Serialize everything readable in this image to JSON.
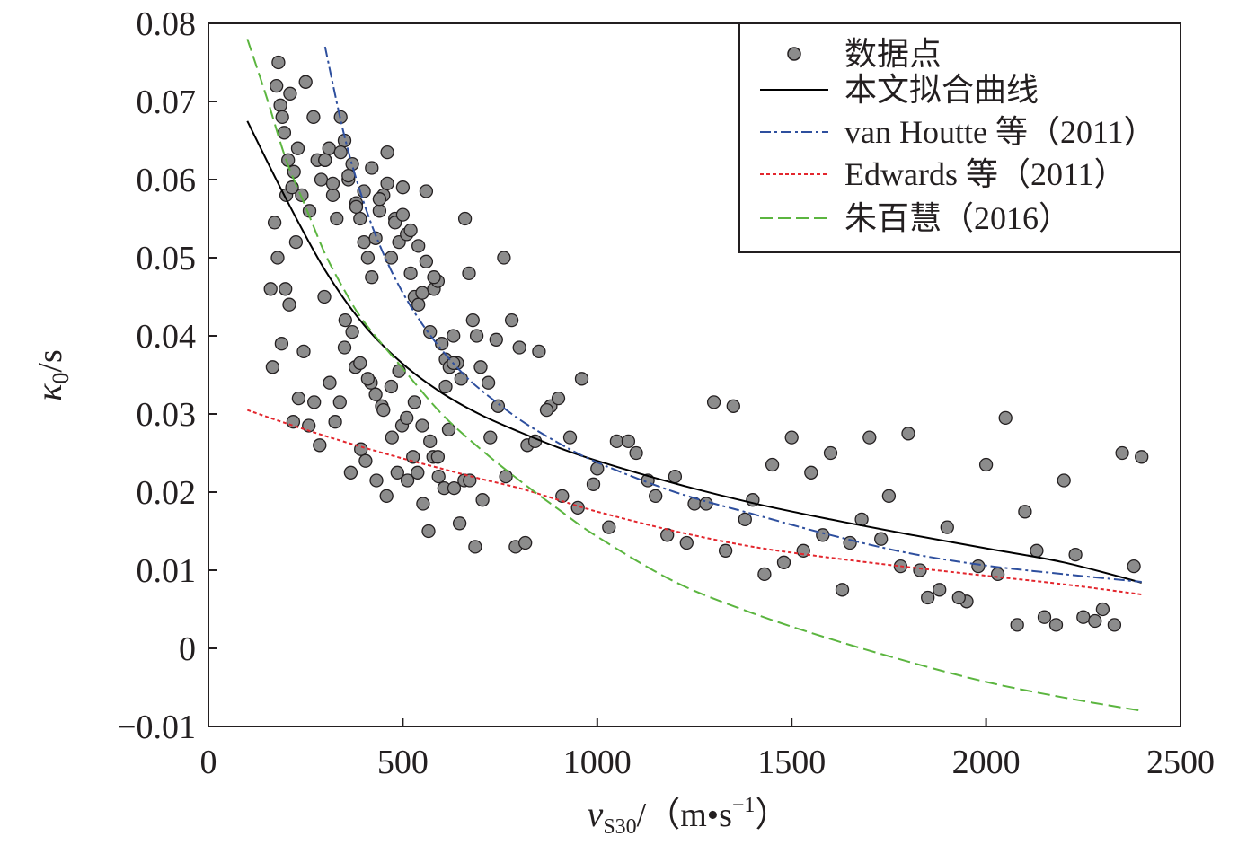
{
  "chart_data": {
    "type": "scatter",
    "title": "",
    "xlabel": {
      "main": "v",
      "sub": "S30",
      "unit_prefix": "/（m•s",
      "sup": "−1",
      "unit_suffix": "）"
    },
    "ylabel": {
      "main": "κ",
      "sub": "0",
      "suffix": "/s"
    },
    "xlim": [
      0,
      2500
    ],
    "ylim": [
      -0.01,
      0.08
    ],
    "xticks": [
      0,
      500,
      1000,
      1500,
      2000,
      2500
    ],
    "xtick_labels": [
      "0",
      "500",
      "1000",
      "1500",
      "2000",
      "2500"
    ],
    "yticks": [
      -0.01,
      0,
      0.01,
      0.02,
      0.03,
      0.04,
      0.05,
      0.06,
      0.07,
      0.08
    ],
    "ytick_labels": [
      "−0.01",
      "0",
      "0.01",
      "0.02",
      "0.03",
      "0.04",
      "0.05",
      "0.06",
      "0.07",
      "0.08"
    ],
    "grid": false,
    "legend_position": "top-right",
    "colors": {
      "points_fill": "#8c8c8c",
      "points_stroke": "#231f20",
      "fit": "#000000",
      "van_houtte": "#2e4f9e",
      "edwards": "#e3262d",
      "zhu": "#5bb53f",
      "axis": "#231f20"
    },
    "legend": [
      {
        "label": "数据点",
        "kind": "marker"
      },
      {
        "label": "本文拟合曲线",
        "kind": "solid"
      },
      {
        "label": "van Houtte 等（2011）",
        "kind": "dashdot"
      },
      {
        "label": "Edwards 等（2011）",
        "kind": "dotted"
      },
      {
        "label": "朱百慧（2016）",
        "kind": "dashed"
      }
    ],
    "series": [
      {
        "name": "本文拟合曲线",
        "style": "solid",
        "x": [
          100,
          200,
          300,
          400,
          500,
          600,
          700,
          800,
          900,
          1000,
          1200,
          1400,
          1600,
          1800,
          2000,
          2200,
          2400
        ],
        "y": [
          0.0675,
          0.0575,
          0.0484,
          0.0414,
          0.0364,
          0.0327,
          0.0299,
          0.0277,
          0.0257,
          0.024,
          0.0211,
          0.0186,
          0.0165,
          0.0146,
          0.0128,
          0.011,
          0.0084
        ]
      },
      {
        "name": "van Houtte 等（2011）",
        "style": "dashdot",
        "x": [
          300,
          350,
          400,
          450,
          500,
          550,
          600,
          650,
          700,
          800,
          900,
          1000,
          1200,
          1400,
          1600,
          1800,
          2000,
          2200,
          2400
        ],
        "y": [
          0.077,
          0.0655,
          0.057,
          0.0505,
          0.0455,
          0.0415,
          0.0382,
          0.0354,
          0.0331,
          0.0293,
          0.0263,
          0.0238,
          0.02,
          0.0172,
          0.0145,
          0.0122,
          0.0106,
          0.0095,
          0.0085
        ]
      },
      {
        "name": "Edwards 等（2011）",
        "style": "dotted",
        "x": [
          100,
          200,
          300,
          400,
          500,
          600,
          700,
          800,
          900,
          1000,
          1200,
          1400,
          1600,
          1800,
          2000,
          2200,
          2400
        ],
        "y": [
          0.0305,
          0.0288,
          0.0272,
          0.0257,
          0.0243,
          0.023,
          0.0217,
          0.0205,
          0.019,
          0.0175,
          0.015,
          0.013,
          0.0116,
          0.0104,
          0.0093,
          0.0082,
          0.0069
        ]
      },
      {
        "name": "朱百慧（2016）",
        "style": "dashed",
        "x": [
          100,
          150,
          200,
          250,
          300,
          350,
          400,
          500,
          600,
          700,
          800,
          900,
          1000,
          1200,
          1400,
          1600,
          1800,
          2000,
          2200,
          2400
        ],
        "y": [
          0.078,
          0.0705,
          0.0625,
          0.0565,
          0.0505,
          0.0458,
          0.0418,
          0.0358,
          0.03,
          0.0255,
          0.0215,
          0.0178,
          0.0143,
          0.0085,
          0.0045,
          0.0012,
          -0.0017,
          -0.0043,
          -0.0063,
          -0.008
        ]
      }
    ],
    "points": {
      "name": "数据点",
      "x": [
        160,
        170,
        175,
        180,
        185,
        190,
        195,
        200,
        205,
        210,
        215,
        220,
        225,
        230,
        240,
        250,
        260,
        270,
        280,
        290,
        300,
        310,
        320,
        330,
        340,
        350,
        360,
        370,
        380,
        390,
        400,
        410,
        420,
        430,
        440,
        450,
        460,
        470,
        480,
        490,
        500,
        510,
        520,
        530,
        540,
        550,
        560,
        570,
        580,
        590,
        600,
        610,
        620,
        630,
        640,
        650,
        660,
        670,
        680,
        690,
        700,
        720,
        740,
        760,
        780,
        800,
        820,
        850,
        880,
        900,
        930,
        960,
        1000,
        1050,
        1100,
        1150,
        1200,
        1250,
        1300,
        1350,
        1400,
        1450,
        1500,
        1550,
        1600,
        1650,
        1700,
        1750,
        1800,
        1850,
        1900,
        1950,
        2000,
        2050,
        2100,
        2150,
        2200,
        2250,
        2300,
        2350,
        2400,
        165,
        178,
        188,
        198,
        208,
        218,
        232,
        245,
        258,
        272,
        286,
        298,
        312,
        326,
        338,
        352,
        366,
        378,
        392,
        404,
        418,
        432,
        446,
        458,
        472,
        486,
        498,
        512,
        526,
        538,
        552,
        566,
        578,
        592,
        606,
        618,
        632,
        646,
        658,
        672,
        686,
        705,
        725,
        745,
        765,
        790,
        815,
        840,
        870,
        910,
        950,
        990,
        1030,
        1080,
        1130,
        1180,
        1230,
        1280,
        1330,
        1380,
        1430,
        1480,
        1530,
        1580,
        1630,
        1680,
        1730,
        1780,
        1830,
        1880,
        1930,
        1980,
        2030,
        2080,
        2130,
        2180,
        2230,
        2280,
        2330,
        2380,
        300,
        320,
        340,
        360,
        380,
        400,
        420,
        440,
        460,
        480,
        500,
        520,
        540,
        560,
        580,
        350,
        370,
        390,
        410,
        430,
        450,
        470,
        490,
        510,
        530,
        550,
        570,
        590,
        610,
        630
      ],
      "y": [
        0.046,
        0.0545,
        0.072,
        0.075,
        0.0695,
        0.068,
        0.066,
        0.058,
        0.0625,
        0.071,
        0.059,
        0.061,
        0.052,
        0.064,
        0.058,
        0.0725,
        0.056,
        0.068,
        0.0625,
        0.06,
        0.0625,
        0.064,
        0.058,
        0.055,
        0.068,
        0.065,
        0.06,
        0.062,
        0.057,
        0.055,
        0.052,
        0.05,
        0.0475,
        0.0525,
        0.056,
        0.058,
        0.0635,
        0.05,
        0.055,
        0.052,
        0.059,
        0.053,
        0.048,
        0.045,
        0.044,
        0.0455,
        0.0585,
        0.0405,
        0.046,
        0.047,
        0.039,
        0.037,
        0.036,
        0.04,
        0.0365,
        0.0345,
        0.055,
        0.048,
        0.042,
        0.04,
        0.036,
        0.034,
        0.0395,
        0.05,
        0.042,
        0.0385,
        0.026,
        0.038,
        0.031,
        0.032,
        0.027,
        0.0345,
        0.023,
        0.0265,
        0.025,
        0.0195,
        0.022,
        0.0185,
        0.0315,
        0.031,
        0.019,
        0.0235,
        0.027,
        0.0225,
        0.025,
        0.0135,
        0.027,
        0.0195,
        0.0275,
        0.0065,
        0.0155,
        0.006,
        0.0235,
        0.0295,
        0.0175,
        0.004,
        0.0215,
        0.004,
        0.005,
        0.025,
        0.0245,
        0.036,
        0.05,
        0.039,
        0.046,
        0.044,
        0.029,
        0.032,
        0.038,
        0.0285,
        0.0315,
        0.026,
        0.045,
        0.034,
        0.029,
        0.0315,
        0.042,
        0.0225,
        0.036,
        0.0255,
        0.024,
        0.034,
        0.0215,
        0.031,
        0.0195,
        0.027,
        0.0225,
        0.0285,
        0.0215,
        0.0245,
        0.0225,
        0.0185,
        0.015,
        0.0245,
        0.022,
        0.0205,
        0.028,
        0.0205,
        0.016,
        0.0215,
        0.0215,
        0.013,
        0.019,
        0.027,
        0.031,
        0.022,
        0.013,
        0.0135,
        0.0265,
        0.0305,
        0.0195,
        0.018,
        0.021,
        0.0155,
        0.0265,
        0.0215,
        0.0145,
        0.0135,
        0.0185,
        0.0125,
        0.0165,
        0.0095,
        0.011,
        0.0125,
        0.0145,
        0.0075,
        0.0165,
        0.014,
        0.0105,
        0.01,
        0.0075,
        0.0065,
        0.0105,
        0.0095,
        0.003,
        0.0125,
        0.003,
        0.012,
        0.0035,
        0.003,
        0.0105,
        0.0625,
        0.0595,
        0.0635,
        0.0605,
        0.0565,
        0.0585,
        0.0615,
        0.0575,
        0.0595,
        0.0545,
        0.0555,
        0.0535,
        0.0515,
        0.0495,
        0.0475,
        0.0385,
        0.0405,
        0.0365,
        0.0345,
        0.0325,
        0.0305,
        0.0335,
        0.0355,
        0.0295,
        0.0315,
        0.0285,
        0.0265,
        0.0245,
        0.0335,
        0.0365
      ]
    }
  }
}
